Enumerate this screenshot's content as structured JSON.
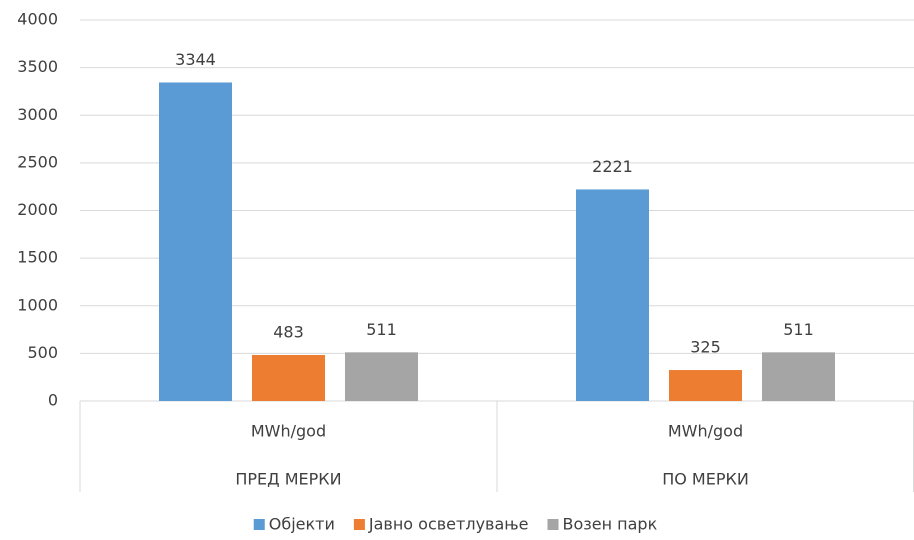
{
  "chart_data": {
    "type": "bar",
    "categories": [
      "MWh/god",
      "MWh/god"
    ],
    "groups": [
      "ПРЕД МЕРКИ",
      "ПО МЕРКИ"
    ],
    "series": [
      {
        "name": "Објекти",
        "color": "#5b9bd5",
        "values": [
          3344,
          2221
        ]
      },
      {
        "name": "Јавно осветлување",
        "color": "#ed7d31",
        "values": [
          483,
          325
        ]
      },
      {
        "name": "Возен парк",
        "color": "#a5a5a5",
        "values": [
          511,
          511
        ]
      }
    ],
    "ylim": [
      0,
      4000
    ],
    "yticks": [
      0,
      500,
      1000,
      1500,
      2000,
      2500,
      3000,
      3500,
      4000
    ],
    "grid": true,
    "legend": "bottom"
  }
}
